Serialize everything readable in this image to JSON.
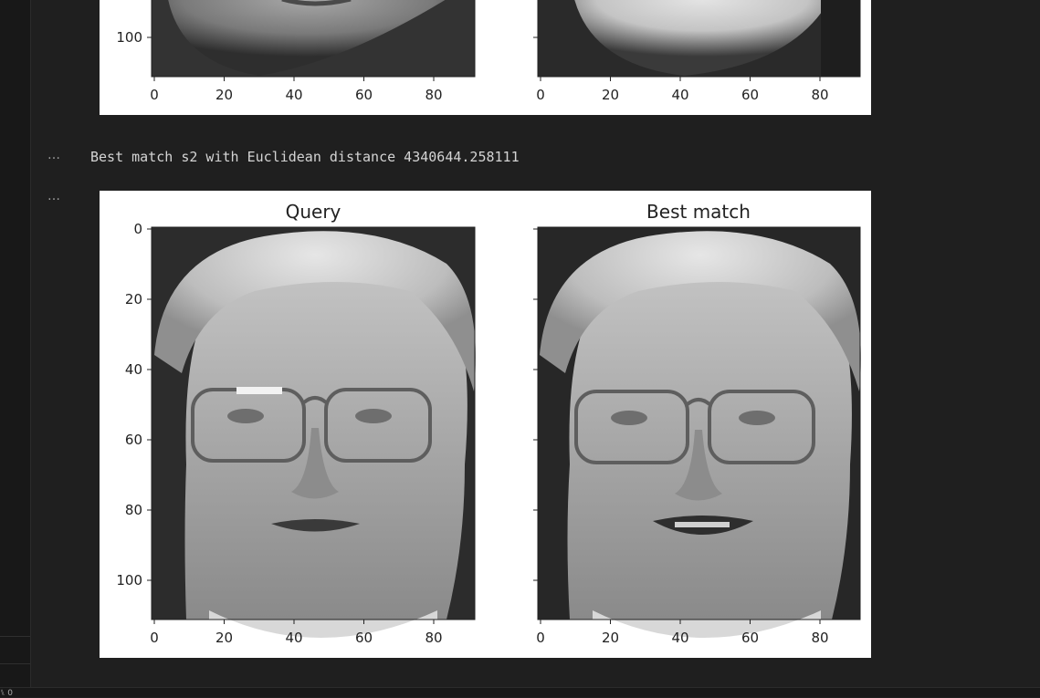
{
  "output": {
    "more_actions_label": "…",
    "message": "Best match s2 with Euclidean distance 4340644.258111"
  },
  "figures": [
    {
      "panels": [
        {
          "title": "",
          "x_ticks": [
            "0",
            "20",
            "40",
            "60",
            "80"
          ],
          "y_ticks": [
            "100"
          ]
        },
        {
          "title": "",
          "x_ticks": [
            "0",
            "20",
            "40",
            "60",
            "80"
          ],
          "y_ticks": []
        }
      ]
    },
    {
      "panels": [
        {
          "title": "Query",
          "x_ticks": [
            "0",
            "20",
            "40",
            "60",
            "80"
          ],
          "y_ticks": [
            "0",
            "20",
            "40",
            "60",
            "80",
            "100"
          ]
        },
        {
          "title": "Best match",
          "x_ticks": [
            "0",
            "20",
            "40",
            "60",
            "80"
          ],
          "y_ticks": []
        }
      ]
    }
  ],
  "status_bar": {
    "glyph": "⑊ 0"
  },
  "colors": {
    "editor_bg": "#1f1f1f",
    "figure_bg": "#ffffff",
    "output_text": "#d4d4d4"
  }
}
